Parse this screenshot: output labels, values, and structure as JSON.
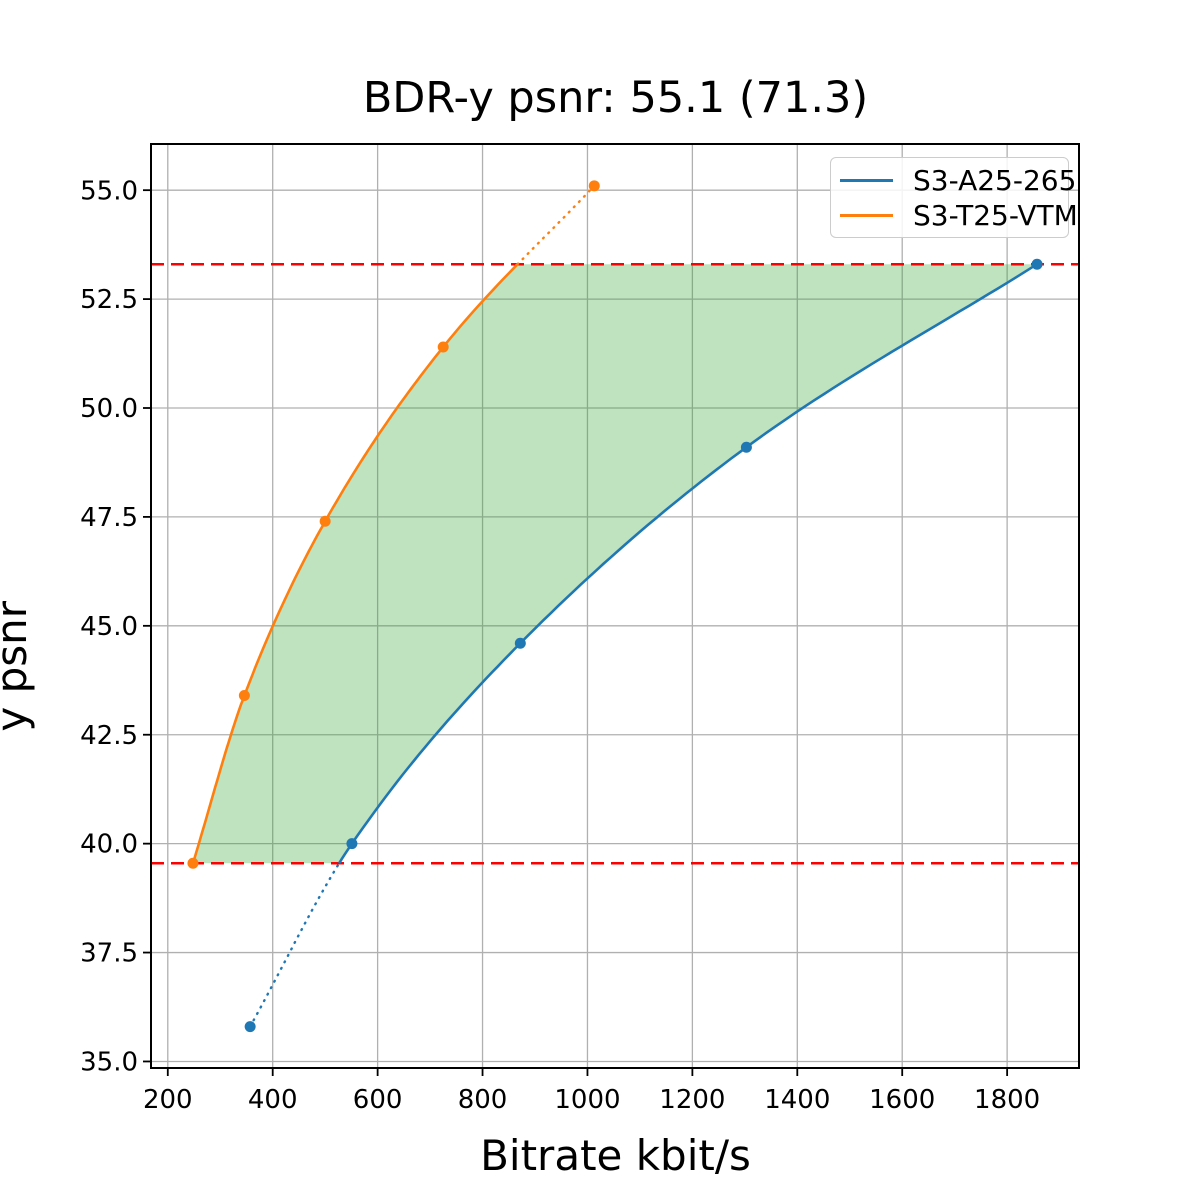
{
  "figure": {
    "title": "BDR-y psnr: 55.1 (71.3)",
    "x_axis_label": "Bitrate kbit/s",
    "y_axis_label": "y psnr"
  },
  "legend": {
    "position": "upper right",
    "items": [
      {
        "label": "S3-A25-265",
        "color": "#1f77b4"
      },
      {
        "label": "S3-T25-VTM",
        "color": "#ff7f0e"
      }
    ]
  },
  "chart_data": {
    "type": "line",
    "title": "BDR-y psnr: 55.1 (71.3)",
    "xlabel": "Bitrate kbit/s",
    "ylabel": "y psnr",
    "xlim": [
      168,
      1937
    ],
    "ylim": [
      34.85,
      56.06
    ],
    "grid": true,
    "x_ticks": {
      "values": [
        200,
        400,
        600,
        800,
        1000,
        1200,
        1400,
        1600,
        1800
      ],
      "labels": [
        "200",
        "400",
        "600",
        "800",
        "1000",
        "1200",
        "1400",
        "1600",
        "1800"
      ]
    },
    "y_ticks": {
      "values": [
        35.0,
        37.5,
        40.0,
        42.5,
        45.0,
        47.5,
        50.0,
        52.5,
        55.0
      ],
      "labels": [
        "35.0",
        "37.5",
        "40.0",
        "42.5",
        "45.0",
        "47.5",
        "50.0",
        "52.5",
        "55.0"
      ]
    },
    "series": [
      {
        "name": "S3-A25-265",
        "color": "#1f77b4",
        "x": [
          357,
          551,
          872,
          1303,
          1857
        ],
        "y": [
          35.8,
          40.0,
          44.6,
          49.1,
          53.3
        ]
      },
      {
        "name": "S3-T25-VTM",
        "color": "#ff7f0e",
        "x": [
          248,
          346,
          500,
          725,
          1013
        ],
        "y": [
          39.55,
          43.4,
          47.4,
          51.4,
          55.1
        ]
      }
    ],
    "overlap_lines": {
      "lower": 39.55,
      "upper": 53.3,
      "color": "#ff0000",
      "style": "dashed"
    },
    "shaded_region": {
      "between": [
        "S3-T25-VTM",
        "S3-A25-265"
      ],
      "y_range": [
        39.55,
        53.3
      ],
      "color": "#2ca02c",
      "alpha": 0.3
    },
    "outside_overlap_linestyle": "dotted"
  }
}
